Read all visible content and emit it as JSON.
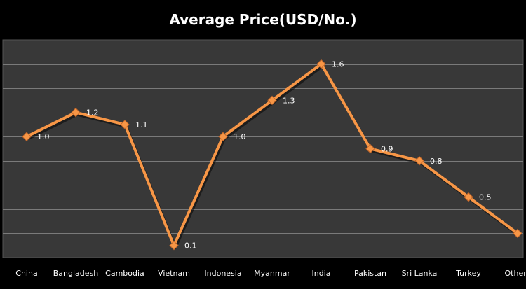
{
  "chart_data": {
    "type": "line",
    "title": "Average Price(USD/No.)",
    "xlabel": "",
    "ylabel": "",
    "categories": [
      "China",
      "Bangladesh",
      "Cambodia",
      "Vietnam",
      "Indonesia",
      "Myanmar",
      "India",
      "Pakistan",
      "Sri Lanka",
      "Turkey",
      "Others"
    ],
    "series": [
      {
        "values": [
          1.0,
          1.2,
          1.1,
          0.1,
          1.0,
          1.3,
          1.6,
          0.9,
          0.8,
          0.5,
          0.2
        ],
        "labels": [
          "1.0",
          "1.2",
          "1.1",
          "0.1",
          "1.0",
          "1.3",
          "1.6",
          "0.9",
          "0.8",
          "0.5",
          ""
        ]
      }
    ],
    "ylim": [
      0,
      1.8
    ],
    "grid": true,
    "y_tick_labels_visible": false,
    "colors": {
      "background": "#000000",
      "plot_area": "#383838",
      "gridline": "#7a7a7a",
      "line": "#F79646",
      "marker": "#F79646",
      "text": "#FFFFFF"
    }
  }
}
